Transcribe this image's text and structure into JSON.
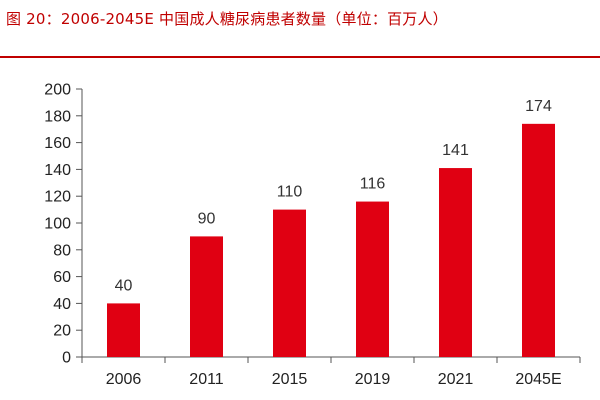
{
  "page": {
    "title": "图 20：2006-2045E 中国成人糖尿病患者数量（单位：百万人）",
    "colors": {
      "title": "#c00000",
      "rule": "#c00000",
      "bar": "#e00012"
    }
  },
  "chart_data": {
    "type": "bar",
    "title": "",
    "xlabel": "",
    "ylabel": "",
    "categories": [
      "2006",
      "2011",
      "2015",
      "2019",
      "2021",
      "2045E"
    ],
    "values": [
      40,
      90,
      110,
      116,
      141,
      174
    ],
    "ylim": [
      0,
      200
    ],
    "yticks": [
      0,
      20,
      40,
      60,
      80,
      100,
      120,
      140,
      160,
      180,
      200
    ],
    "data_labels": true,
    "grid": false,
    "legend": "none"
  }
}
